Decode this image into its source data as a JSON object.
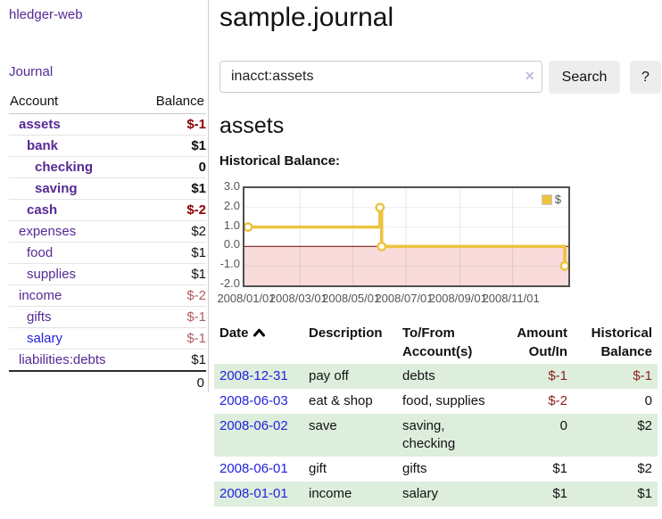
{
  "app": {
    "brand": "hledger-web",
    "nav_journal": "Journal"
  },
  "sidebar": {
    "header": {
      "account": "Account",
      "balance": "Balance"
    },
    "rows": [
      {
        "name": "assets",
        "balance": "$-1",
        "indent": 0,
        "in_query": true,
        "balance_style": "negative-strong"
      },
      {
        "name": "bank",
        "balance": "$1",
        "indent": 1,
        "in_query": true,
        "balance_style": "normal-strong"
      },
      {
        "name": "checking",
        "balance": "0",
        "indent": 2,
        "in_query": true,
        "balance_style": "normal-strong"
      },
      {
        "name": "saving",
        "balance": "$1",
        "indent": 2,
        "in_query": true,
        "balance_style": "normal-strong"
      },
      {
        "name": "cash",
        "balance": "$-2",
        "indent": 1,
        "in_query": true,
        "balance_style": "negative-strong"
      },
      {
        "name": "expenses",
        "balance": "$2",
        "indent": 0,
        "in_query": false,
        "balance_style": "normal"
      },
      {
        "name": "food",
        "balance": "$1",
        "indent": 1,
        "in_query": false,
        "balance_style": "normal"
      },
      {
        "name": "supplies",
        "balance": "$1",
        "indent": 1,
        "in_query": false,
        "balance_style": "normal"
      },
      {
        "name": "income",
        "balance": "$-2",
        "indent": 0,
        "in_query": false,
        "balance_style": "negative-muted"
      },
      {
        "name": "gifts",
        "balance": "$-1",
        "indent": 1,
        "in_query": false,
        "balance_style": "negative-muted"
      },
      {
        "name": "salary",
        "balance": "$-1",
        "indent": 1,
        "in_query": false,
        "balance_style": "negative-muted",
        "link_style": "blue"
      },
      {
        "name": "liabilities:debts",
        "balance": "$1",
        "indent": 0,
        "in_query": false,
        "balance_style": "normal"
      }
    ],
    "total": "0"
  },
  "main": {
    "title": "sample.journal",
    "search": {
      "value": "inacct:assets",
      "clear_icon": "×",
      "button_label": "Search",
      "help_label": "?"
    },
    "account_heading": "assets",
    "chart_label": "Historical Balance:"
  },
  "chart_data": {
    "type": "line",
    "title": "Historical Balance",
    "step": true,
    "xlim": [
      "2008-01-01",
      "2008-12-31"
    ],
    "ylim": [
      -2,
      3
    ],
    "y_ticks": [
      {
        "v": 3,
        "label": "3.0"
      },
      {
        "v": 2,
        "label": "2.0"
      },
      {
        "v": 1,
        "label": "1.0"
      },
      {
        "v": 0,
        "label": "0.0"
      },
      {
        "v": -1,
        "label": "-1.0"
      },
      {
        "v": -2,
        "label": "-2.0"
      }
    ],
    "y_grid": [
      2,
      1,
      -1
    ],
    "x_ticks": [
      {
        "d": "2008-01-01",
        "label": "2008/01/01"
      },
      {
        "d": "2008-03-01",
        "label": "2008/03/01"
      },
      {
        "d": "2008-05-01",
        "label": "2008/05/01"
      },
      {
        "d": "2008-07-01",
        "label": "2008/07/01"
      },
      {
        "d": "2008-09-01",
        "label": "2008/09/01"
      },
      {
        "d": "2008-11-01",
        "label": "2008/11/01"
      }
    ],
    "series": [
      {
        "name": "$",
        "points": [
          {
            "d": "2008-01-01",
            "v": 1
          },
          {
            "d": "2008-06-01",
            "v": 2
          },
          {
            "d": "2008-06-03",
            "v": 0
          },
          {
            "d": "2008-12-31",
            "v": -1
          }
        ]
      }
    ],
    "legend_position": "top-right",
    "line_color": "#edc240",
    "negative_fill": "#f9dbdb",
    "zero_line_color": "#8b3232",
    "grid": true
  },
  "table": {
    "headers": {
      "date": "Date",
      "description": "Description",
      "accounts": "To/From Account(s)",
      "amount": "Amount Out/In",
      "balance": "Historical Balance"
    },
    "sort_icon": "chevron-up",
    "rows": [
      {
        "date": "2008-12-31",
        "description": "pay off",
        "accounts": "debts",
        "amount": "$-1",
        "amount_negative": true,
        "balance": "$-1",
        "balance_negative": true
      },
      {
        "date": "2008-06-03",
        "description": "eat & shop",
        "accounts": "food, supplies",
        "amount": "$-2",
        "amount_negative": true,
        "balance": "0",
        "balance_negative": false
      },
      {
        "date": "2008-06-02",
        "description": "save",
        "accounts": "saving, checking",
        "amount": "0",
        "amount_negative": false,
        "balance": "$2",
        "balance_negative": false
      },
      {
        "date": "2008-06-01",
        "description": "gift",
        "accounts": "gifts",
        "amount": "$1",
        "amount_negative": false,
        "balance": "$2",
        "balance_negative": false
      },
      {
        "date": "2008-01-01",
        "description": "income",
        "accounts": "salary",
        "amount": "$1",
        "amount_negative": false,
        "balance": "$1",
        "balance_negative": false
      }
    ]
  }
}
